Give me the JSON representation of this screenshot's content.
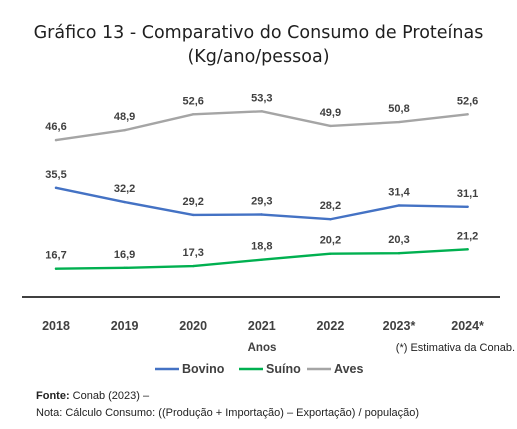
{
  "chart_data": {
    "type": "line",
    "title": "Gráfico 13 -  Comparativo do Consumo de Proteínas",
    "subtitle": "(Kg/ano/pessoa)",
    "xlabel": "Anos",
    "ylabel": "",
    "x": [
      "2018",
      "2019",
      "2020",
      "2021",
      "2022",
      "2023*",
      "2024*"
    ],
    "ylim": [
      0,
      60
    ],
    "grid": false,
    "legend_position": "bottom",
    "annotation": "(*) Estimativa da Conab.",
    "series": [
      {
        "name": "Bovino",
        "color": "#4472c4",
        "values": [
          35.5,
          32.2,
          29.2,
          29.3,
          28.2,
          31.4,
          31.1
        ],
        "labels": [
          "35,5",
          "32,2",
          "29,2",
          "29,3",
          "28,2",
          "31,4",
          "31,1"
        ]
      },
      {
        "name": "Suíno",
        "color": "#00b050",
        "values": [
          16.7,
          16.9,
          17.3,
          18.8,
          20.2,
          20.3,
          21.2
        ],
        "labels": [
          "16,7",
          "16,9",
          "17,3",
          "18,8",
          "20,2",
          "20,3",
          "21,2"
        ]
      },
      {
        "name": "Aves",
        "color": "#a5a5a5",
        "values": [
          46.6,
          48.9,
          52.6,
          53.3,
          49.9,
          50.8,
          52.6
        ],
        "labels": [
          "46,6",
          "48,9",
          "52,6",
          "53,3",
          "49,9",
          "50,8",
          "52,6"
        ]
      }
    ]
  },
  "footer": {
    "source_label": "Fonte:",
    "source_text": " Conab (2023) –",
    "note": "Nota: Cálculo Consumo: ((Produção + Importação) – Exportação) / população)"
  }
}
